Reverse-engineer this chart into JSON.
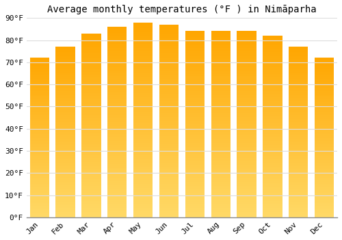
{
  "title": "Average monthly temperatures (°F ) in Nimāparha",
  "months": [
    "Jan",
    "Feb",
    "Mar",
    "Apr",
    "May",
    "Jun",
    "Jul",
    "Aug",
    "Sep",
    "Oct",
    "Nov",
    "Dec"
  ],
  "values": [
    72,
    77,
    83,
    86,
    88,
    87,
    84,
    84,
    84,
    82,
    77,
    72
  ],
  "bar_color_top": "#FFA500",
  "bar_color_bottom": "#FFD580",
  "background_color": "#FFFFFF",
  "grid_color": "#DDDDDD",
  "ylim": [
    0,
    90
  ],
  "yticks": [
    0,
    10,
    20,
    30,
    40,
    50,
    60,
    70,
    80,
    90
  ],
  "ytick_labels": [
    "0°F",
    "10°F",
    "20°F",
    "30°F",
    "40°F",
    "50°F",
    "60°F",
    "70°F",
    "80°F",
    "90°F"
  ],
  "title_fontsize": 10,
  "tick_fontsize": 8,
  "figsize": [
    5.0,
    3.5
  ],
  "dpi": 100,
  "bar_width": 0.75
}
